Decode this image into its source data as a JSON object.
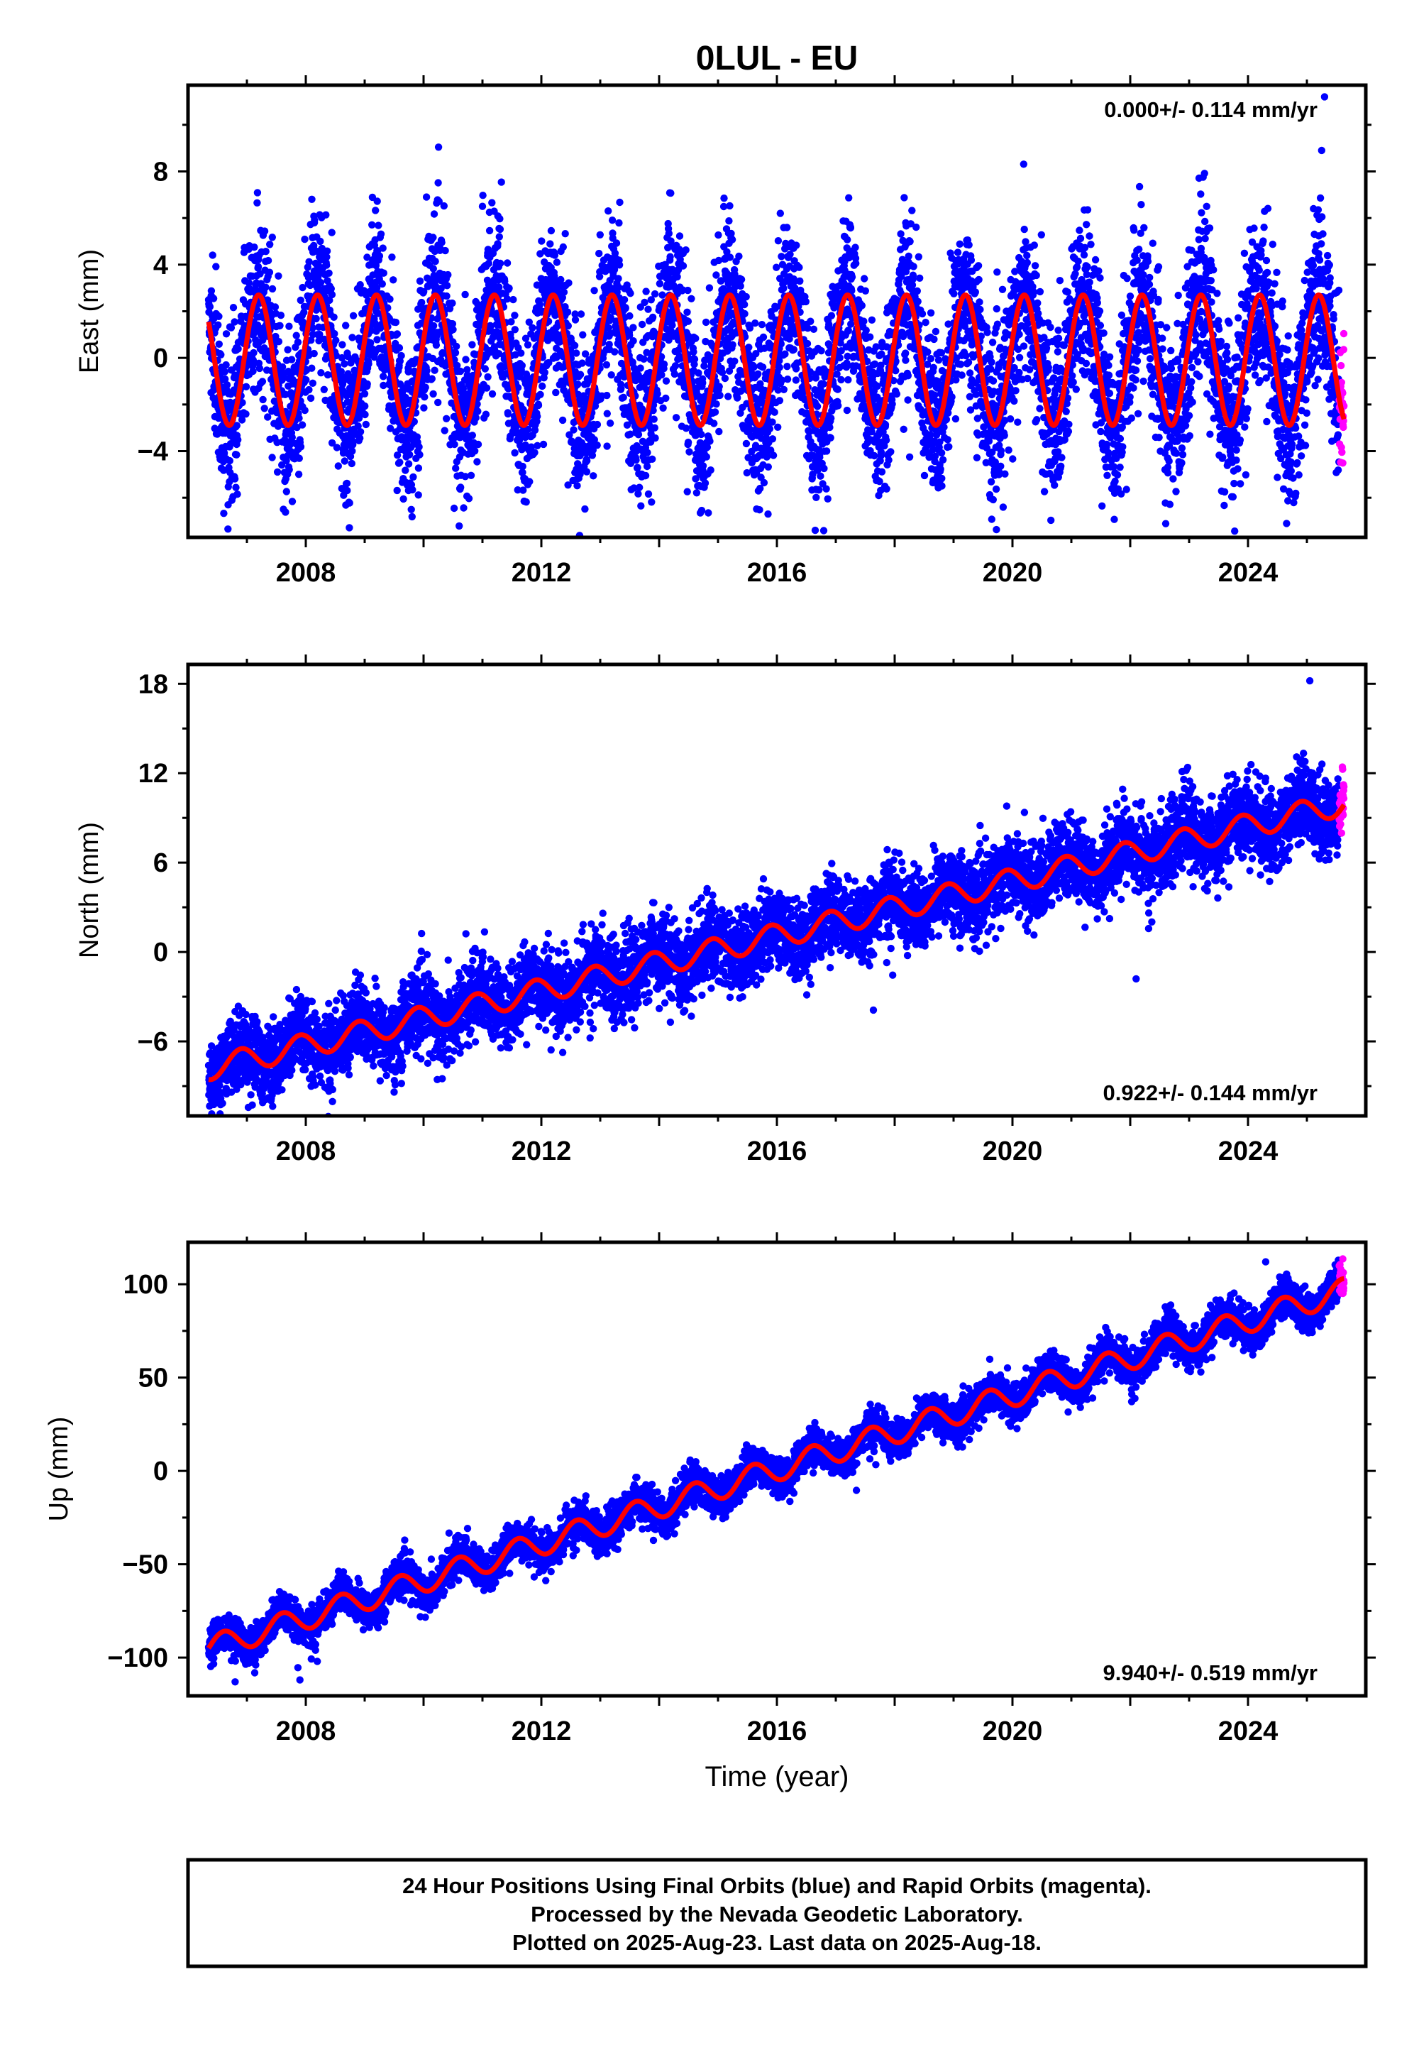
{
  "title": "0LUL - EU",
  "footer": {
    "line1": "24 Hour Positions Using Final Orbits (blue) and Rapid Orbits (magenta).",
    "line2": "Processed by the Nevada Geodetic Laboratory.",
    "line3": "Plotted on 2025-Aug-23. Last data on 2025-Aug-18."
  },
  "chart_data": [
    {
      "type": "scatter",
      "title": "0LUL - EU",
      "xlabel": "",
      "ylabel": "East (mm)",
      "xlim": [
        2006.0,
        2026.0
      ],
      "ylim": [
        -7.7,
        11.7
      ],
      "xticks": [
        "2008",
        "2012",
        "2016",
        "2020",
        "2024"
      ],
      "yticks": [
        "−4",
        "0",
        "4",
        "8"
      ],
      "ytick_values": [
        -4,
        0,
        4,
        8
      ],
      "rate": "0.000+/- 0.114 mm/yr",
      "rate_position": "top-right",
      "model": {
        "start": 2006.35,
        "end": 2025.63,
        "offset": -0.1,
        "trend": 0.0,
        "annual_amplitude": 2.8,
        "annual_peak": 2006.2,
        "semiannual_amplitude": 0.0
      },
      "scatter_noise_sd": 1.7,
      "series": [
        {
          "name": "Final Orbits (blue)",
          "color": "#0000ff",
          "range": [
            2006.35,
            2025.55
          ]
        },
        {
          "name": "Rapid Orbits (magenta)",
          "color": "#ff00ff",
          "range": [
            2025.55,
            2025.63
          ]
        },
        {
          "name": "model",
          "color": "#ff0000"
        }
      ],
      "outliers": [
        [
          2025.3,
          11.2
        ],
        [
          2025.25,
          8.9
        ],
        [
          2016.65,
          -7.4
        ],
        [
          2015.85,
          -6.7
        ],
        [
          2010.05,
          6.9
        ],
        [
          2011.0,
          6.5
        ]
      ]
    },
    {
      "type": "scatter",
      "title": "",
      "xlabel": "",
      "ylabel": "North (mm)",
      "xlim": [
        2006.0,
        2026.0
      ],
      "ylim": [
        -11.0,
        19.3
      ],
      "xticks": [
        "2008",
        "2012",
        "2016",
        "2020",
        "2024"
      ],
      "yticks": [
        "−6",
        "0",
        "6",
        "12",
        "18"
      ],
      "ytick_values": [
        -6,
        0,
        6,
        12,
        18
      ],
      "rate": "0.922+/- 0.144 mm/yr",
      "rate_position": "bottom-right",
      "model": {
        "start": 2006.35,
        "end": 2025.63,
        "offset": -7.8,
        "trend": 0.922,
        "annual_amplitude": 0.8,
        "annual_peak": 2006.9,
        "semiannual_amplitude": 0.0
      },
      "scatter_noise_sd": 1.3,
      "series": [
        {
          "name": "Final Orbits (blue)",
          "color": "#0000ff",
          "range": [
            2006.35,
            2025.55
          ]
        },
        {
          "name": "Rapid Orbits (magenta)",
          "color": "#ff00ff",
          "range": [
            2025.55,
            2025.63
          ]
        },
        {
          "name": "model",
          "color": "#ff0000"
        }
      ],
      "outliers": [
        [
          2025.05,
          18.2
        ],
        [
          2009.5,
          -9.4
        ],
        [
          2022.1,
          -1.8
        ]
      ]
    },
    {
      "type": "scatter",
      "title": "",
      "xlabel": "Time (year)",
      "ylabel": "Up (mm)",
      "xlim": [
        2006.0,
        2026.0
      ],
      "ylim": [
        -120.5,
        122.5
      ],
      "xticks": [
        "2008",
        "2012",
        "2016",
        "2020",
        "2024"
      ],
      "yticks": [
        "−100",
        "−50",
        "0",
        "50",
        "100"
      ],
      "ytick_values": [
        -100,
        -50,
        0,
        50,
        100
      ],
      "rate": "9.940+/- 0.519 mm/yr",
      "rate_position": "bottom-right",
      "model": {
        "start": 2006.35,
        "end": 2025.63,
        "offset": -95.0,
        "trend": 9.94,
        "annual_amplitude": 6.5,
        "annual_peak": 2006.6,
        "semiannual_amplitude": 0.0
      },
      "scatter_noise_sd": 5.0,
      "series": [
        {
          "name": "Final Orbits (blue)",
          "color": "#0000ff",
          "range": [
            2006.35,
            2025.55
          ]
        },
        {
          "name": "Rapid Orbits (magenta)",
          "color": "#ff00ff",
          "range": [
            2025.55,
            2025.63
          ]
        },
        {
          "name": "model",
          "color": "#ff0000"
        }
      ],
      "outliers": [
        [
          2006.8,
          -113
        ],
        [
          2007.9,
          -112
        ],
        [
          2024.3,
          112
        ]
      ]
    }
  ]
}
